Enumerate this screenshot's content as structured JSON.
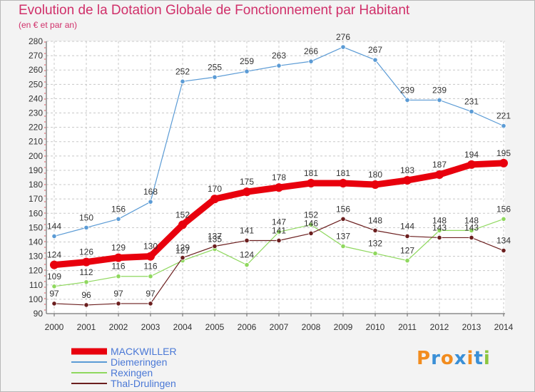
{
  "chart_data": {
    "type": "line",
    "title": "Evolution de la Dotation Globale de Fonctionnement par Habitant",
    "subtitle": "(en € et par an)",
    "xlabel": "",
    "ylabel": "",
    "ylim": [
      90,
      280
    ],
    "ytick_step": 10,
    "x": [
      "2000",
      "2001",
      "2002",
      "2003",
      "2004",
      "2005",
      "2006",
      "2007",
      "2008",
      "2009",
      "2010",
      "2011",
      "2012",
      "2013",
      "2014"
    ],
    "series": [
      {
        "name": "MACKWILLER",
        "color": "#e8000d",
        "emphasis": true,
        "values": [
          124,
          126,
          129,
          130,
          152,
          170,
          175,
          178,
          181,
          181,
          180,
          183,
          187,
          194,
          195
        ]
      },
      {
        "name": "Diemeringen",
        "color": "#5b9bd5",
        "emphasis": false,
        "values": [
          144,
          150,
          156,
          168,
          252,
          255,
          259,
          263,
          266,
          276,
          267,
          239,
          239,
          231,
          221
        ]
      },
      {
        "name": "Rexingen",
        "color": "#8fd85e",
        "emphasis": false,
        "values": [
          109,
          112,
          116,
          116,
          127,
          135,
          124,
          147,
          152,
          137,
          132,
          127,
          148,
          148,
          156
        ]
      },
      {
        "name": "Thal-Drulingen",
        "color": "#6b1e1e",
        "emphasis": false,
        "values": [
          97,
          96,
          97,
          97,
          129,
          137,
          141,
          141,
          146,
          156,
          148,
          144,
          143,
          143,
          134
        ]
      }
    ],
    "legend_position": "bottom-left",
    "grid": true
  },
  "logo": {
    "text": "Proxiti",
    "letter_colors": [
      "#f28c1e",
      "#3a8fd6",
      "#f28c1e",
      "#3a8fd6",
      "#f28c1e",
      "#3a8fd6",
      "#8cc63f"
    ]
  }
}
